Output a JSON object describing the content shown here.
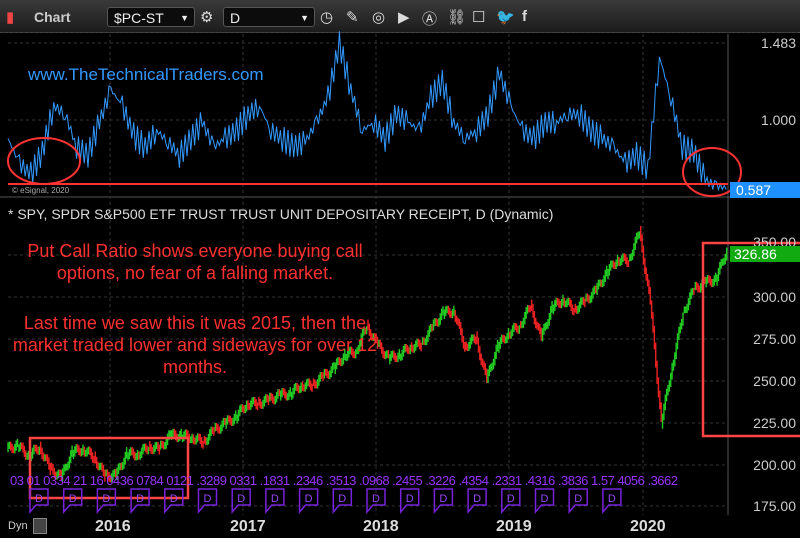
{
  "toolbar": {
    "title": "Chart",
    "symbol": "$PC-ST",
    "interval": "D",
    "icons": [
      "settings-icon",
      "clock-icon",
      "pencil-icon",
      "study-icon",
      "play-icon",
      "alert-icon",
      "link-icon",
      "comment-icon",
      "twitter-icon",
      "facebook-icon"
    ]
  },
  "top_pane": {
    "watermark": "www.TheTechnicalTraders.com",
    "copyright": "© eSignal, 2020",
    "axis": [
      "1.483",
      "1.000"
    ],
    "last_value": "0.587"
  },
  "bottom_pane": {
    "title": "* SPY, SPDR S&P500 ETF TRUST TRUST UNIT DEPOSITARY RECEIPT, D (Dynamic)",
    "last_value": "326.86",
    "axis": [
      "350.00",
      "300.00",
      "275.00",
      "250.00",
      "225.00",
      "200.00",
      "175.00"
    ],
    "note1": "Put Call Ratio shows everyone buying call options, no fear of a falling market.",
    "note2": "Last time we saw this it was 2015, then the market traded lower and sideways for over 12 months.",
    "dividend_text": "03 01 0334 21 16 0436 0784 0121 .3289 0331 .1831 .2346 .3513 .0968 .2455 .3226 .4354 .2331 .4316 .3836 1.57 4056 .3662",
    "marker": "D",
    "dyn": "Dyn"
  },
  "years": [
    "2016",
    "2017",
    "2018",
    "2019",
    "2020"
  ],
  "colors": {
    "up": "#22cc22",
    "down": "#ee2222",
    "pc": "#3399ff",
    "annot": "#ff3333",
    "badge": "#1e90ff"
  },
  "chart_data": [
    {
      "type": "line",
      "name": "$PC-ST",
      "x_start": "2015-04",
      "x_end": "2020-08",
      "ylim": [
        0.587,
        1.483
      ],
      "values": [
        0.9,
        0.75,
        0.68,
        0.82,
        1.1,
        1.05,
        0.85,
        0.8,
        1.0,
        1.2,
        1.1,
        0.92,
        0.85,
        0.95,
        0.88,
        0.8,
        0.9,
        1.0,
        0.85,
        0.9,
        0.95,
        1.05,
        1.1,
        0.95,
        0.9,
        0.85,
        0.88,
        1.0,
        1.15,
        1.48,
        1.2,
        0.95,
        1.0,
        0.9,
        1.05,
        1.0,
        0.95,
        1.15,
        1.25,
        1.0,
        0.9,
        0.95,
        1.05,
        1.3,
        1.1,
        0.95,
        0.9,
        1.0,
        1.0,
        1.05,
        1.05,
        0.95,
        0.9,
        0.85,
        0.75,
        0.8,
        0.72,
        1.4,
        1.15,
        0.85,
        0.82,
        0.65,
        0.6,
        0.587
      ]
    },
    {
      "type": "candlestick",
      "name": "SPY",
      "x_start": "2015-04",
      "x_end": "2020-08",
      "ylim": [
        175,
        350
      ],
      "values": [
        209,
        211,
        205,
        210,
        197,
        192,
        207,
        209,
        204,
        193,
        193,
        206,
        206,
        210,
        209,
        217,
        217,
        216,
        213,
        220,
        224,
        228,
        236,
        236,
        238,
        241,
        242,
        247,
        247,
        252,
        257,
        265,
        267,
        282,
        271,
        263,
        265,
        270,
        271,
        281,
        290,
        291,
        270,
        275,
        250,
        270,
        278,
        282,
        294,
        275,
        293,
        298,
        292,
        297,
        303,
        314,
        322,
        321,
        338,
        296,
        225,
        258,
        290,
        304,
        308,
        310,
        326.86
      ]
    }
  ]
}
